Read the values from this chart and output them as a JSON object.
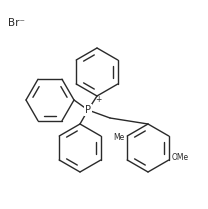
{
  "bg_color": "#ffffff",
  "line_color": "#2a2a2a",
  "line_width": 1.0,
  "font_size_label": 5.5,
  "font_size_br": 7.5,
  "font_size_p": 7.0,
  "br_label": "Br⁻",
  "p_label": "P",
  "plus_label": "+"
}
